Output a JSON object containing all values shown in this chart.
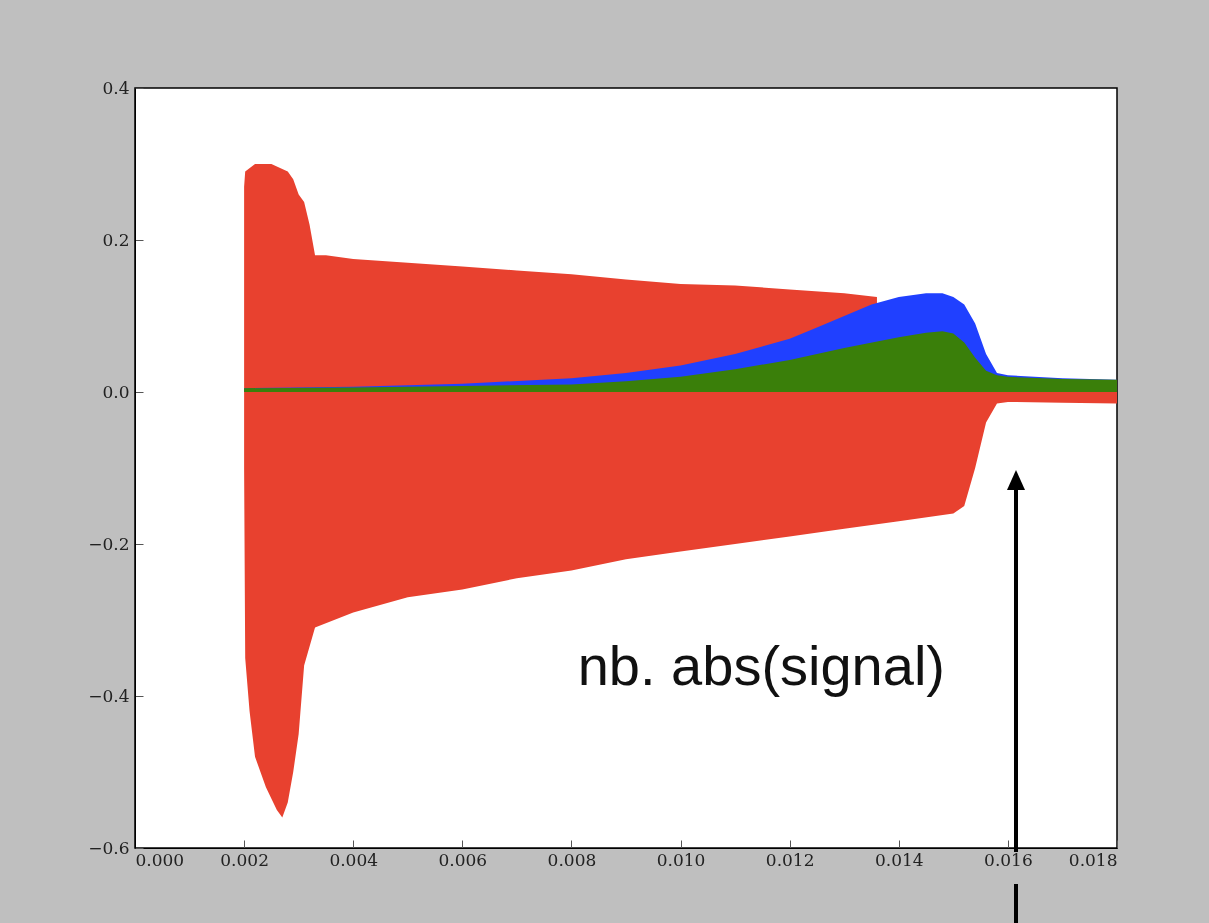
{
  "chart_data": {
    "type": "area",
    "xlim": [
      0,
      0.018
    ],
    "ylim": [
      -0.6,
      0.4
    ],
    "xticks": [
      {
        "value": 0,
        "label": "0.000"
      },
      {
        "value": 0.002,
        "label": "0.002"
      },
      {
        "value": 0.004,
        "label": "0.004"
      },
      {
        "value": 0.006,
        "label": "0.006"
      },
      {
        "value": 0.008,
        "label": "0.008"
      },
      {
        "value": 0.01,
        "label": "0.010"
      },
      {
        "value": 0.012,
        "label": "0.012"
      },
      {
        "value": 0.014,
        "label": "0.014"
      },
      {
        "value": 0.016,
        "label": "0.016"
      },
      {
        "value": 0.018,
        "label": "0.018"
      }
    ],
    "yticks": [
      {
        "value": -0.6,
        "label": "−0.6"
      },
      {
        "value": -0.4,
        "label": "−0.4"
      },
      {
        "value": -0.2,
        "label": "−0.2"
      },
      {
        "value": 0,
        "label": "0.0"
      },
      {
        "value": 0.2,
        "label": "0.2"
      },
      {
        "value": 0.4,
        "label": "0.4"
      }
    ],
    "grid": false,
    "series": [
      {
        "color": "#e8412f",
        "x": [
          0.002,
          0.00202,
          0.0022,
          0.0025,
          0.0028,
          0.0029,
          0.003,
          0.0031,
          0.0032,
          0.0033,
          0.0035,
          0.004,
          0.005,
          0.006,
          0.007,
          0.008,
          0.009,
          0.01,
          0.011,
          0.012,
          0.013,
          0.0136
        ],
        "values": [
          0.27,
          0.29,
          0.3,
          0.3,
          0.29,
          0.28,
          0.26,
          0.25,
          0.22,
          0.18,
          0.18,
          0.175,
          0.17,
          0.165,
          0.16,
          0.155,
          0.148,
          0.142,
          0.14,
          0.135,
          0.13,
          0.125
        ]
      },
      {
        "color": "#e8412f",
        "x": [
          0.002,
          0.00202,
          0.0021,
          0.0022,
          0.0024,
          0.0026,
          0.0027,
          0.0028,
          0.0029,
          0.003,
          0.0031,
          0.0033,
          0.004,
          0.005,
          0.006,
          0.007,
          0.008,
          0.009,
          0.01,
          0.011,
          0.012,
          0.013,
          0.014,
          0.015,
          0.0152,
          0.0154,
          0.0156,
          0.0158,
          0.016,
          0.017,
          0.018
        ],
        "values": [
          -0.1,
          -0.35,
          -0.42,
          -0.48,
          -0.52,
          -0.55,
          -0.56,
          -0.54,
          -0.5,
          -0.45,
          -0.36,
          -0.31,
          -0.29,
          -0.27,
          -0.26,
          -0.245,
          -0.235,
          -0.22,
          -0.21,
          -0.2,
          -0.19,
          -0.18,
          -0.17,
          -0.16,
          -0.15,
          -0.1,
          -0.04,
          -0.015,
          -0.013,
          -0.014,
          -0.015
        ]
      },
      {
        "color": "#2040ff",
        "x": [
          0.002,
          0.004,
          0.006,
          0.008,
          0.009,
          0.01,
          0.011,
          0.012,
          0.0125,
          0.013,
          0.0135,
          0.014,
          0.0145,
          0.0148,
          0.015,
          0.0152,
          0.0154,
          0.0156,
          0.0158,
          0.016,
          0.017,
          0.018
        ],
        "values": [
          0.005,
          0.007,
          0.011,
          0.018,
          0.025,
          0.035,
          0.05,
          0.07,
          0.085,
          0.1,
          0.115,
          0.125,
          0.13,
          0.13,
          0.125,
          0.115,
          0.09,
          0.05,
          0.025,
          0.022,
          0.018,
          0.016
        ]
      },
      {
        "color": "#3a7f0a",
        "x": [
          0.002,
          0.004,
          0.006,
          0.008,
          0.009,
          0.01,
          0.011,
          0.012,
          0.013,
          0.014,
          0.0145,
          0.0148,
          0.015,
          0.0152,
          0.0154,
          0.0156,
          0.0158,
          0.016,
          0.017,
          0.018
        ],
        "values": [
          0.005,
          0.006,
          0.008,
          0.01,
          0.014,
          0.02,
          0.03,
          0.042,
          0.058,
          0.072,
          0.078,
          0.08,
          0.077,
          0.065,
          0.045,
          0.028,
          0.022,
          0.02,
          0.017,
          0.016
        ]
      }
    ],
    "annotations": [
      "nb. abs(signal)"
    ]
  }
}
